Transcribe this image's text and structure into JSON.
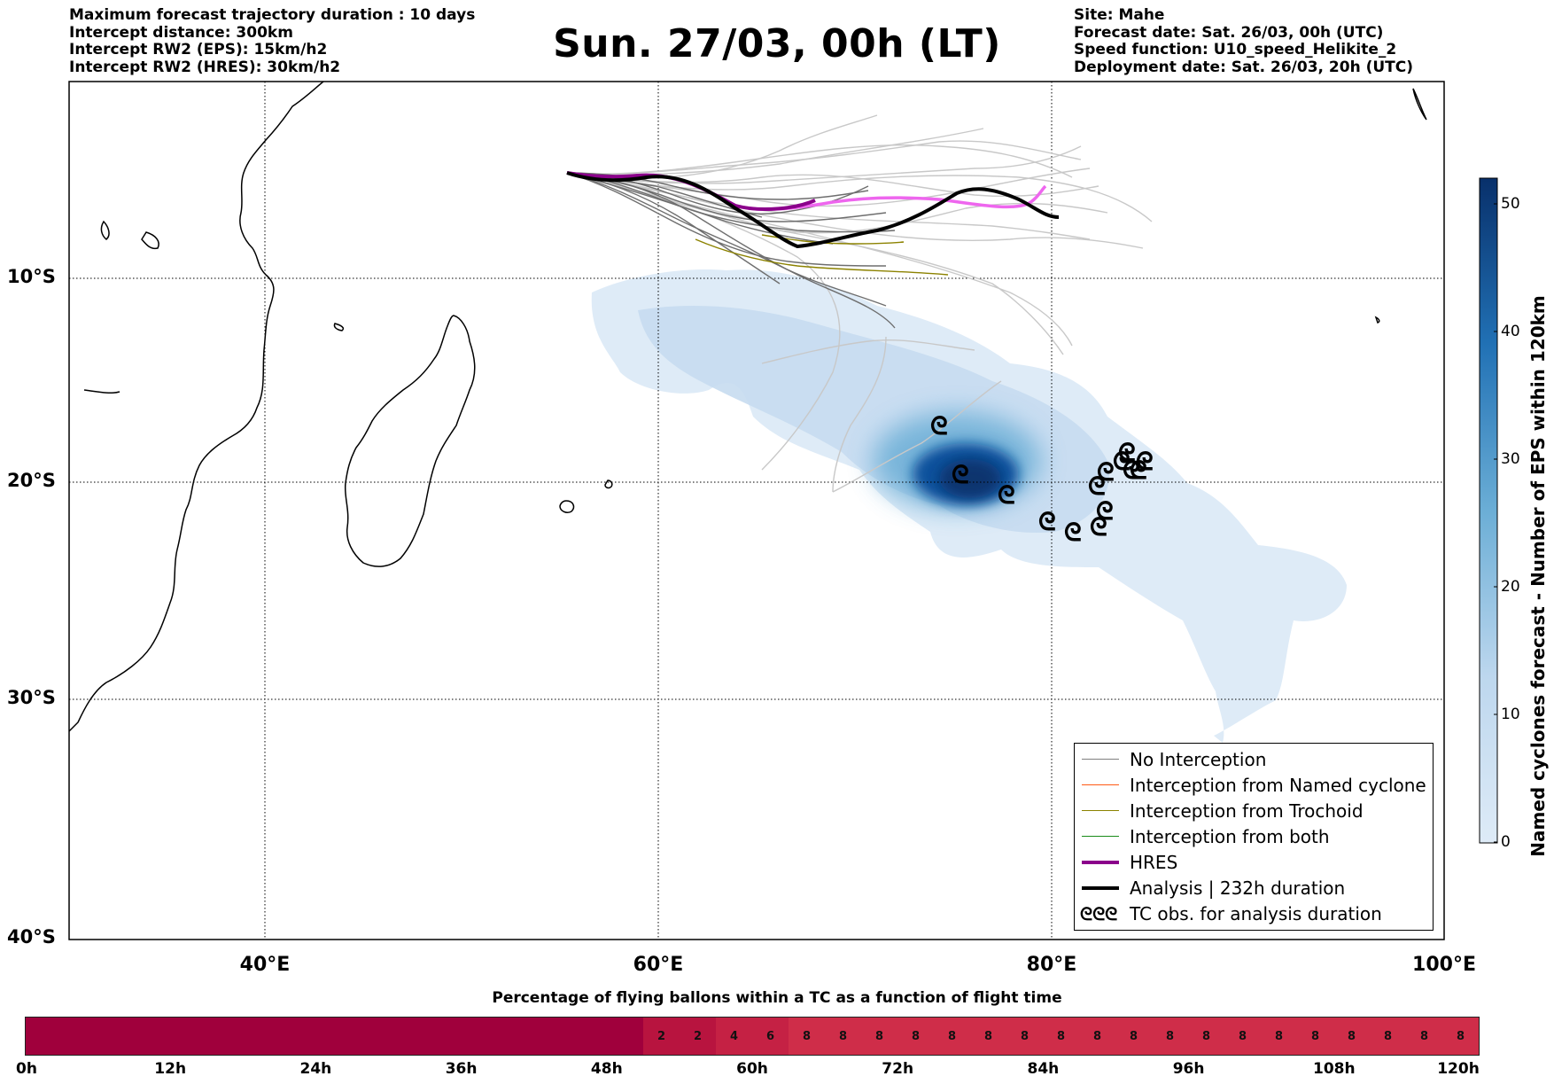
{
  "header_left": [
    "Maximum forecast trajectory duration : 10 days",
    "Intercept distance: 300km",
    "Intercept RW2 (EPS):  15km/h2",
    "Intercept RW2 (HRES): 30km/h2"
  ],
  "title": "Sun. 27/03, 00h (LT)",
  "header_right": [
    "Site: Mahe",
    "Forecast date: Sat. 26/03, 00h (UTC)",
    "Speed function: U10_speed_Helikite_2",
    "Deployment date: Sat. 26/03, 20h (UTC)"
  ],
  "map": {
    "lat_labels": [
      "10°S",
      "20°S",
      "30°S",
      "40°S"
    ],
    "lon_labels": [
      "40°E",
      "60°E",
      "80°E",
      "100°E"
    ],
    "extent": {
      "lon_min": 30,
      "lon_max": 100,
      "lat_top": -1,
      "lat_bottom": -40
    },
    "gridlines": "dotted"
  },
  "legend": {
    "items": [
      {
        "label": "No Interception",
        "color": "#7f7f7f",
        "style": "thin"
      },
      {
        "label": "Interception from Named cyclone",
        "color": "#ff5a14",
        "style": "thin"
      },
      {
        "label": "Interception from Trochoid",
        "color": "#8c8200",
        "style": "thin"
      },
      {
        "label": "Interception from both",
        "color": "#1a8c1a",
        "style": "thin"
      },
      {
        "label": "HRES",
        "color": "#8b008b",
        "style": "thick"
      },
      {
        "label": "Analysis | 232h duration",
        "color": "#000000",
        "style": "thick"
      },
      {
        "label": "TC obs. for analysis duration",
        "color": "#000000",
        "style": "symbol",
        "symbol": "ᘓᘓᘓ"
      }
    ]
  },
  "colorbar": {
    "label": "Named cyclones forecast - Number of EPS within 120km",
    "ticks": [
      "0",
      "10",
      "20",
      "30",
      "40",
      "50"
    ],
    "min": 0,
    "max": 52,
    "color_low": "#deebf7",
    "color_high": "#08306b"
  },
  "tc_obs_symbol": "ᘓ",
  "bottom_bar": {
    "title": "Percentage of flying ballons within a TC as a function of flight time",
    "tick_labels": [
      "0h",
      "12h",
      "24h",
      "36h",
      "48h",
      "60h",
      "72h",
      "84h",
      "96h",
      "108h",
      "120h"
    ],
    "segment_hours": 3,
    "segments": [
      {
        "from_h": 0,
        "to_h": 51,
        "value": ""
      },
      {
        "from_h": 51,
        "to_h": 54,
        "value": "2"
      },
      {
        "from_h": 54,
        "to_h": 57,
        "value": "2"
      },
      {
        "from_h": 57,
        "to_h": 60,
        "value": "4"
      },
      {
        "from_h": 60,
        "to_h": 63,
        "value": "6"
      },
      {
        "from_h": 63,
        "to_h": 66,
        "value": "8"
      },
      {
        "from_h": 66,
        "to_h": 69,
        "value": "8"
      },
      {
        "from_h": 69,
        "to_h": 72,
        "value": "8"
      },
      {
        "from_h": 72,
        "to_h": 75,
        "value": "8"
      },
      {
        "from_h": 75,
        "to_h": 78,
        "value": "8"
      },
      {
        "from_h": 78,
        "to_h": 81,
        "value": "8"
      },
      {
        "from_h": 81,
        "to_h": 84,
        "value": "8"
      },
      {
        "from_h": 84,
        "to_h": 87,
        "value": "8"
      },
      {
        "from_h": 87,
        "to_h": 90,
        "value": "8"
      },
      {
        "from_h": 90,
        "to_h": 93,
        "value": "8"
      },
      {
        "from_h": 93,
        "to_h": 96,
        "value": "8"
      },
      {
        "from_h": 96,
        "to_h": 99,
        "value": "8"
      },
      {
        "from_h": 99,
        "to_h": 102,
        "value": "8"
      },
      {
        "from_h": 102,
        "to_h": 105,
        "value": "8"
      },
      {
        "from_h": 105,
        "to_h": 108,
        "value": "8"
      },
      {
        "from_h": 108,
        "to_h": 111,
        "value": "8"
      },
      {
        "from_h": 111,
        "to_h": 114,
        "value": "8"
      },
      {
        "from_h": 114,
        "to_h": 117,
        "value": "8"
      },
      {
        "from_h": 117,
        "to_h": 120,
        "value": "8"
      }
    ],
    "colors": {
      "zero": "#a0003c",
      "low": "#b8143f",
      "mid": "#c52144",
      "high": "#cf2d49"
    }
  }
}
